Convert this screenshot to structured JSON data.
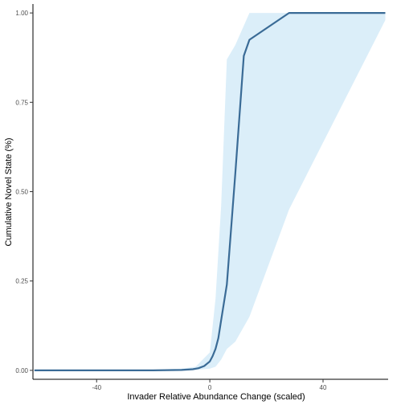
{
  "chart_data": {
    "type": "line",
    "title": "",
    "xlabel": "Invader Relative Abundance Change (scaled)",
    "ylabel": "Cumulative Novel State (%)",
    "xlim": [
      -62.5,
      63
    ],
    "ylim": [
      -0.025,
      1.025
    ],
    "x_ticks": [
      -40,
      0,
      40
    ],
    "y_ticks": [
      0.0,
      0.25,
      0.5,
      0.75,
      1.0
    ],
    "x_tick_labels": [
      "-40",
      "0",
      "40"
    ],
    "y_tick_labels": [
      "0.00",
      "0.25",
      "0.50",
      "0.75",
      "1.00"
    ],
    "grid": false,
    "colors": {
      "line": "#3a6b96",
      "ribbon": "#dbeef9",
      "axis": "#000000"
    },
    "series": [
      {
        "x": [
          -62,
          -40,
          -20,
          -10,
          -6,
          -4,
          -2,
          0,
          1,
          2,
          3,
          4,
          6,
          9,
          12,
          14,
          28,
          62
        ],
        "y": [
          0.0,
          0.0,
          0.0,
          0.001,
          0.003,
          0.006,
          0.012,
          0.025,
          0.04,
          0.06,
          0.09,
          0.14,
          0.24,
          0.55,
          0.88,
          0.925,
          1.0,
          1.0
        ]
      }
    ],
    "ribbon": {
      "x": [
        -62,
        -40,
        -20,
        -10,
        -5,
        0,
        2,
        4,
        6,
        9,
        14,
        28,
        62
      ],
      "lower": [
        0.0,
        0.0,
        0.0,
        0.0,
        0.001,
        0.005,
        0.01,
        0.03,
        0.06,
        0.08,
        0.15,
        0.45,
        0.98
      ],
      "upper": [
        0.0,
        0.0,
        0.002,
        0.005,
        0.01,
        0.05,
        0.2,
        0.46,
        0.87,
        0.91,
        1.0,
        1.0,
        1.0
      ]
    }
  }
}
